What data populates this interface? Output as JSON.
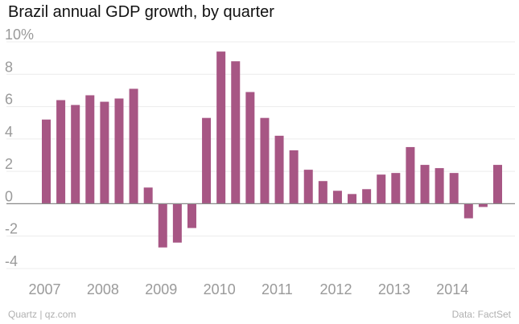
{
  "chart_data": {
    "type": "bar",
    "title": "Brazil annual GDP growth, by quarter",
    "xlabel": "",
    "ylabel": "",
    "ylim": [
      -4.3,
      10.3
    ],
    "yticks": [
      {
        "value": 10,
        "label": "10%"
      },
      {
        "value": 8,
        "label": "8"
      },
      {
        "value": 6,
        "label": "6"
      },
      {
        "value": 4,
        "label": "4"
      },
      {
        "value": 2,
        "label": "2"
      },
      {
        "value": 0,
        "label": "0"
      },
      {
        "value": -2,
        "label": "-2"
      },
      {
        "value": -4,
        "label": "-4"
      }
    ],
    "year_labels": [
      "2007",
      "2008",
      "2009",
      "2010",
      "2011",
      "2012",
      "2013",
      "2014"
    ],
    "categories": [
      "2007 Q1",
      "2007 Q2",
      "2007 Q3",
      "2007 Q4",
      "2008 Q1",
      "2008 Q2",
      "2008 Q3",
      "2008 Q4",
      "2009 Q1",
      "2009 Q2",
      "2009 Q3",
      "2009 Q4",
      "2010 Q1",
      "2010 Q2",
      "2010 Q3",
      "2010 Q4",
      "2011 Q1",
      "2011 Q2",
      "2011 Q3",
      "2011 Q4",
      "2012 Q1",
      "2012 Q2",
      "2012 Q3",
      "2012 Q4",
      "2013 Q1",
      "2013 Q2",
      "2013 Q3",
      "2013 Q4",
      "2014 Q1",
      "2014 Q2",
      "2014 Q3",
      "2014 Q4"
    ],
    "values": [
      5.2,
      6.4,
      6.1,
      6.7,
      6.3,
      6.5,
      7.1,
      1.0,
      -2.7,
      -2.4,
      -1.5,
      5.3,
      9.4,
      8.8,
      6.9,
      5.3,
      4.2,
      3.3,
      2.1,
      1.4,
      0.8,
      0.6,
      0.9,
      1.8,
      1.9,
      3.5,
      2.4,
      2.2,
      1.9,
      -0.9,
      -0.2,
      2.4
    ],
    "bar_color": "#a75684",
    "grid": true,
    "grid_color": "#ececec",
    "zero_line_color": "#8a8a8a"
  },
  "footer": {
    "source_left": "Quartz | qz.com",
    "source_right": "Data: FactSet"
  }
}
